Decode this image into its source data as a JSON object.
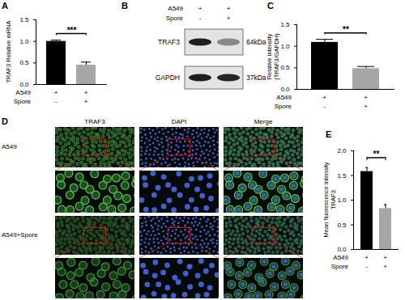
{
  "chart_data": [
    {
      "panel": "A",
      "type": "bar",
      "categories": [
        null,
        null
      ],
      "values": [
        1.0,
        0.45
      ],
      "errors": [
        0.03,
        0.07
      ],
      "colors": [
        "#000000",
        "#a6a6a6"
      ],
      "ylabel": "TRAF3 Relative mRNA",
      "ylim": [
        0,
        1.5
      ],
      "yticks": [
        {
          "value": 0,
          "label": "0.0"
        },
        {
          "value": 0.5,
          "label": "0.5"
        },
        {
          "value": 1,
          "label": "1.0"
        },
        {
          "value": 1.5,
          "label": "1.5"
        }
      ],
      "annotations": [
        "***"
      ],
      "condition_table": [
        {
          "label": "A549",
          "values": [
            "+",
            "+"
          ]
        },
        {
          "label": "Spore",
          "values": [
            "-",
            "+"
          ]
        }
      ]
    },
    {
      "panel": "C",
      "type": "bar",
      "categories": [
        null,
        null
      ],
      "values": [
        1.09,
        0.48
      ],
      "errors": [
        0.07,
        0.05
      ],
      "colors": [
        "#000000",
        "#a6a6a6"
      ],
      "ylabel": "Relative intensity\n(TRAF3/GAPDH)",
      "ylim": [
        0,
        1.5
      ],
      "yticks": [
        {
          "value": 0,
          "label": "0.0"
        },
        {
          "value": 0.5,
          "label": "0.5"
        },
        {
          "value": 1,
          "label": "1.0"
        },
        {
          "value": 1.5,
          "label": "1.5"
        }
      ],
      "annotations": [
        "**"
      ],
      "condition_table": [
        {
          "label": "A549",
          "values": [
            "+",
            "+"
          ]
        },
        {
          "label": "Spore",
          "values": [
            "-",
            "+"
          ]
        }
      ]
    },
    {
      "panel": "E",
      "type": "bar",
      "categories": [
        null,
        null
      ],
      "values": [
        1.58,
        0.83
      ],
      "errors": [
        0.08,
        0.08
      ],
      "colors": [
        "#000000",
        "#a6a6a6"
      ],
      "ylabel": "Mean fluorescence intensity\nTRAF3",
      "ylim": [
        0,
        2
      ],
      "yticks": [
        {
          "value": 0,
          "label": "0.0"
        },
        {
          "value": 0.5,
          "label": "0.5"
        },
        {
          "value": 1,
          "label": "1.0"
        },
        {
          "value": 1.5,
          "label": "1.5"
        },
        {
          "value": 2,
          "label": "2.0"
        }
      ],
      "annotations": [
        "**"
      ],
      "condition_table": [
        {
          "label": "A549",
          "values": [
            "+",
            "+"
          ]
        },
        {
          "label": "Spore",
          "values": [
            "-",
            "+"
          ]
        }
      ]
    }
  ],
  "blot": {
    "panel": "B",
    "condition_table": [
      {
        "label": "A549",
        "values": [
          "+",
          "+"
        ]
      },
      {
        "label": "Spore",
        "values": [
          "-",
          "+"
        ]
      }
    ],
    "bands": [
      {
        "label": "TRAF3",
        "size": "64kDa"
      },
      {
        "label": "GAPDH",
        "size": "37kDa"
      }
    ]
  },
  "images": {
    "panel": "D",
    "columns": [
      "TRAF3",
      "DAPI",
      "Merge"
    ],
    "rows": [
      "A549",
      "A549+Spore"
    ]
  }
}
